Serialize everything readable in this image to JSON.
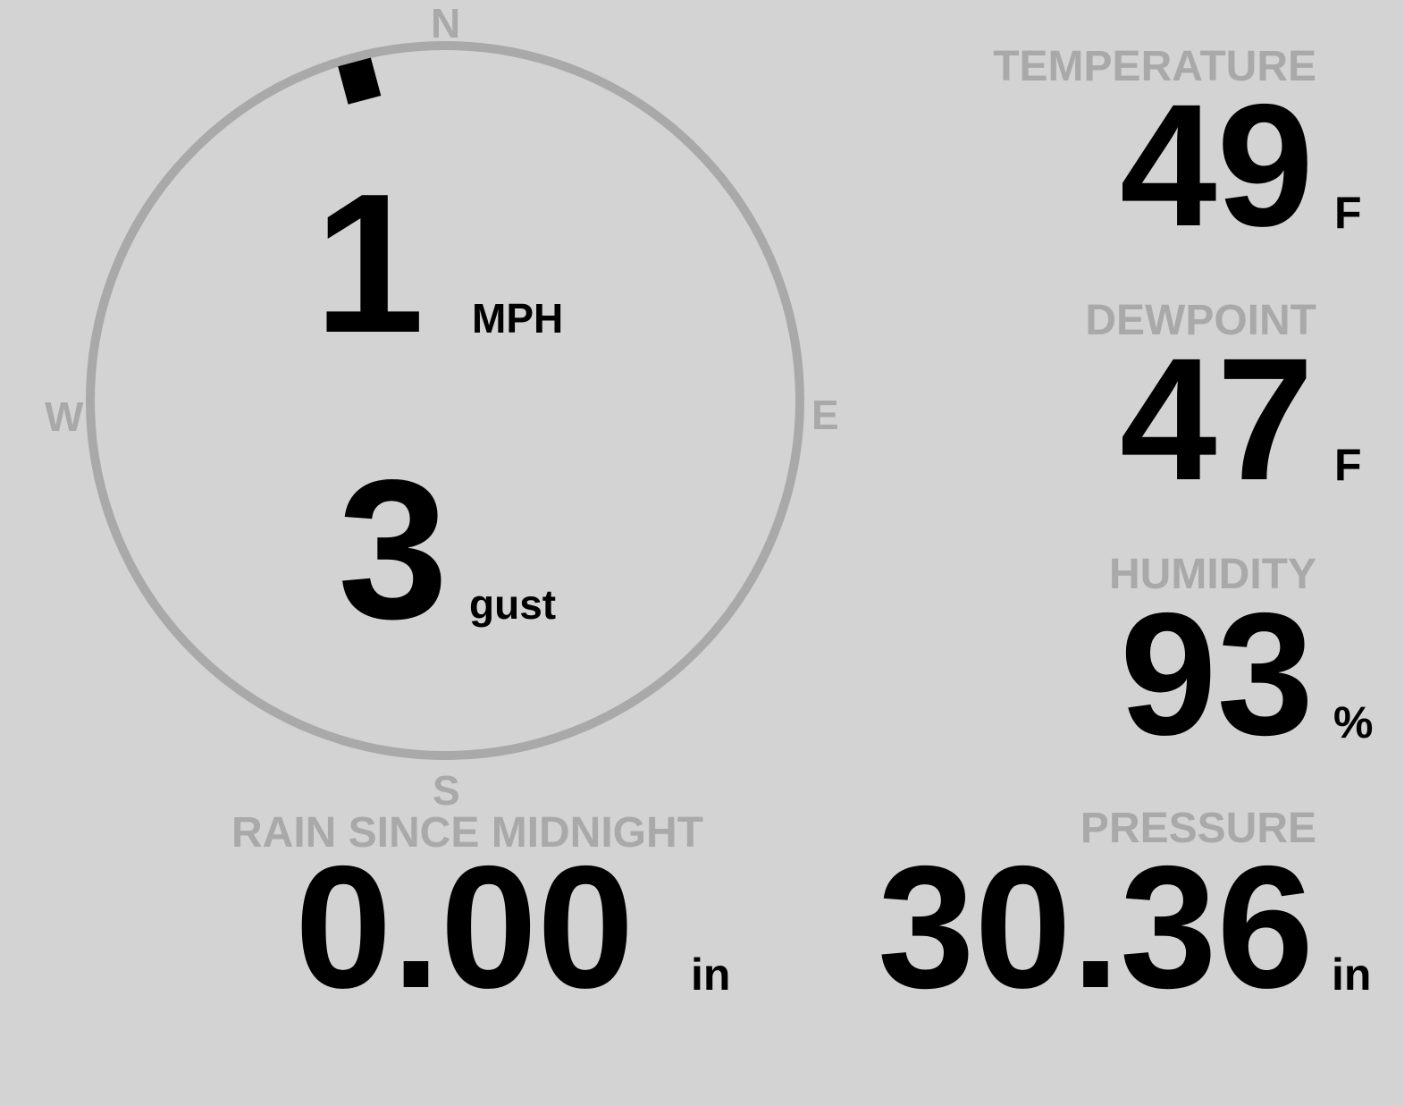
{
  "colors": {
    "background": "#d3d3d3",
    "ring": "#a9a9a9",
    "label": "#a9a9a9",
    "value": "#000000"
  },
  "wind": {
    "compass": {
      "n": "N",
      "s": "S",
      "e": "E",
      "w": "W"
    },
    "direction_deg": 345,
    "speed": "1",
    "speed_unit": "MPH",
    "gust": "3",
    "gust_unit": "gust"
  },
  "temperature": {
    "label": "TEMPERATURE",
    "value": "49",
    "unit": "F"
  },
  "dewpoint": {
    "label": "DEWPOINT",
    "value": "47",
    "unit": "F"
  },
  "humidity": {
    "label": "HUMIDITY",
    "value": "93",
    "unit": "%"
  },
  "pressure": {
    "label": "PRESSURE",
    "value": "30.36",
    "unit": "in"
  },
  "rain": {
    "label": "RAIN SINCE MIDNIGHT",
    "value": "0.00",
    "unit": "in"
  }
}
